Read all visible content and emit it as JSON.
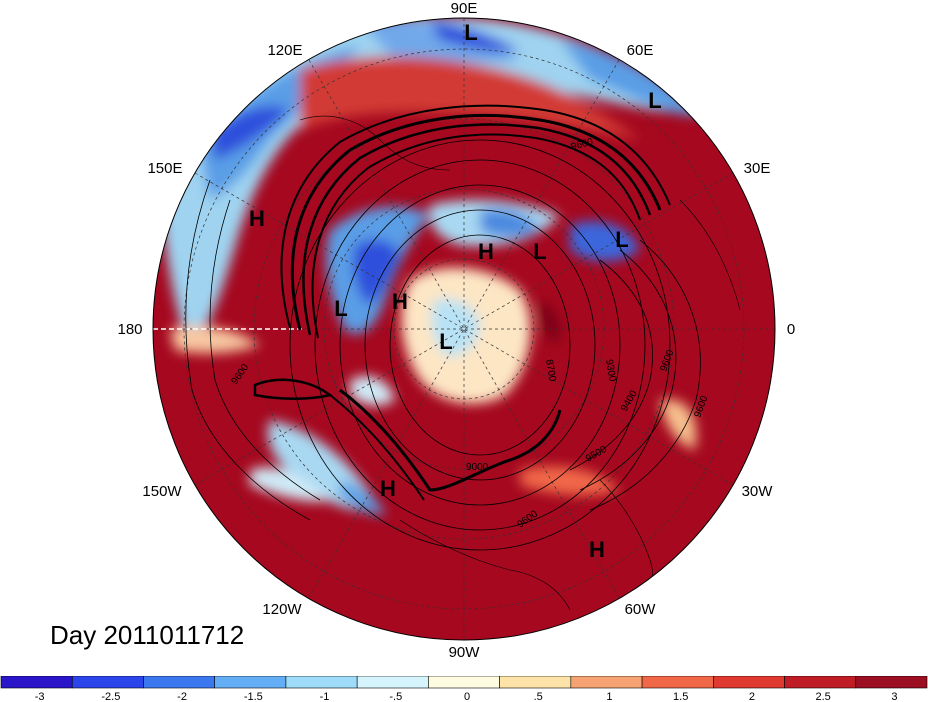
{
  "date_label": "Day 2011011712",
  "longitude_labels": {
    "e90": "90E",
    "e60": "60E",
    "e30": "30E",
    "lon0": "0",
    "w30": "30W",
    "w60": "60W",
    "w90": "90W",
    "w120": "120W",
    "w150": "150W",
    "lon180": "180",
    "e150": "150E",
    "e120": "120E"
  },
  "pressure_centers": {
    "low_top": "L",
    "low_ne": "L",
    "high_west": "H",
    "high_center": "H",
    "low_center_right": "L",
    "low_east": "L",
    "low_left": "L",
    "high_left": "H",
    "low_pole": "L",
    "high_south": "H",
    "high_se": "H"
  },
  "contour_labels": {
    "c9600_ne": "9600",
    "c9600_w": "9600",
    "c8700": "8700",
    "c9300": "9300",
    "c9600_e": "9600",
    "c9400": "9400",
    "c9600_e2": "9600",
    "c9500": "9500",
    "c9000": "9000",
    "c9600_s": "9600"
  },
  "colorbar": {
    "colors": [
      "#2a16c8",
      "#2b45ea",
      "#3b78f0",
      "#64aef5",
      "#9fdcf9",
      "#d5f4fb",
      "#fdfbe0",
      "#fde3a8",
      "#f6a373",
      "#f06848",
      "#e03a30",
      "#c01c26",
      "#9c0e22"
    ],
    "tick_labels": [
      "-3",
      "-2.5",
      "-2",
      "-1.5",
      "-1",
      "-.5",
      "0",
      ".5",
      "1",
      "1.5",
      "2",
      "2.5",
      "3"
    ]
  },
  "colors": {
    "deep_red": "#a5081f",
    "mid_red": "#d23a34",
    "warm_orange": "#f19a72",
    "neutral": "#fdf2d6",
    "light_blue": "#a9d8f2",
    "mid_blue": "#5aa2e8",
    "deep_blue": "#2d4fdc"
  }
}
